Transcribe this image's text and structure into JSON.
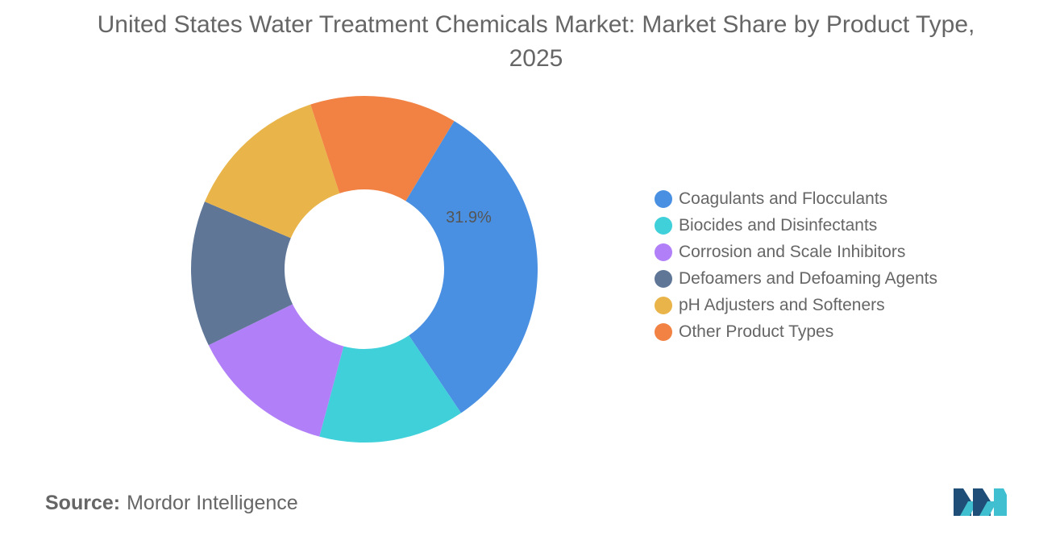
{
  "title": "United States Water Treatment Chemicals Market: Market Share by Product Type, 2025",
  "chart_data": {
    "type": "pie",
    "donut": true,
    "title": "United States Water Treatment Chemicals Market: Market Share by Product Type, 2025",
    "legend_position": "right",
    "slices": [
      {
        "label": "Coagulants and Flocculants",
        "value": 31.9,
        "color": "#4a90e2",
        "show_label": true,
        "display": "31.9%"
      },
      {
        "label": "Biocides and Disinfectants",
        "value": 13.6,
        "color": "#3fd0da",
        "show_label": false
      },
      {
        "label": "Corrosion and Scale Inhibitors",
        "value": 13.6,
        "color": "#b180f8",
        "show_label": false
      },
      {
        "label": "Defoamers and Defoaming Agents",
        "value": 13.6,
        "color": "#5f7697",
        "show_label": false
      },
      {
        "label": "pH Adjusters and Softeners",
        "value": 13.6,
        "color": "#e9b54a",
        "show_label": false
      },
      {
        "label": "Other Product Types",
        "value": 13.7,
        "color": "#f18243",
        "show_label": false
      }
    ]
  },
  "source": {
    "label": "Source:",
    "value": "Mordor Intelligence"
  },
  "logo": {
    "icon": "mordor-intelligence-logo",
    "colors": [
      "#1f4e79",
      "#3fbfd0"
    ]
  }
}
